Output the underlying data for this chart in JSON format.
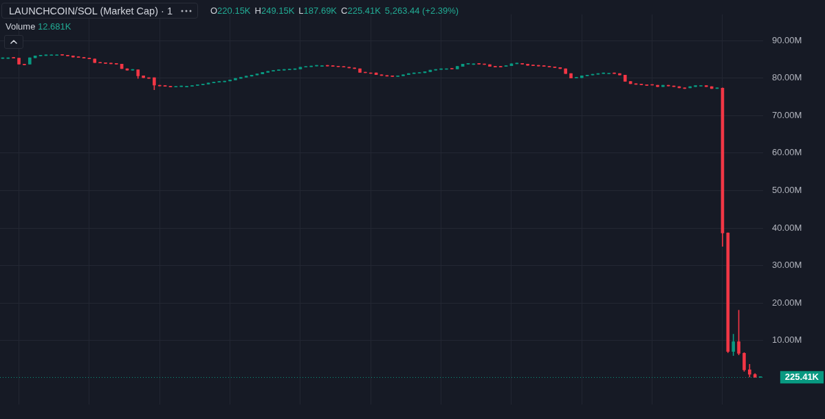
{
  "chart_data": {
    "type": "candlestick",
    "title": "LAUNCHCOIN/SOL (Market Cap) · 1",
    "annotations": [
      "O220.15K",
      "H249.15K",
      "L187.69K",
      "C225.41K",
      "5,263.44 (+2.39%)",
      "Volume 12.681K"
    ],
    "categories": [
      null,
      null,
      null,
      null,
      null,
      null,
      null,
      null,
      null,
      null,
      null,
      null,
      null,
      null,
      null,
      null,
      null,
      null,
      null,
      null,
      null,
      null,
      null,
      null,
      null,
      null,
      null,
      null,
      null,
      null,
      null,
      null,
      null,
      null,
      null,
      null,
      null,
      null,
      null,
      null,
      null,
      null,
      null,
      null,
      null,
      null,
      null,
      null,
      null,
      null,
      null,
      null,
      null,
      null,
      null,
      null,
      null,
      null,
      null,
      null,
      null,
      null,
      null,
      null,
      null,
      null,
      null,
      null,
      null,
      null,
      null,
      null,
      null,
      null,
      null,
      null,
      null,
      null,
      null,
      null,
      null,
      null,
      null,
      null,
      null,
      null,
      null,
      null,
      null,
      null,
      null,
      null,
      null,
      null,
      null,
      null,
      null,
      null,
      null,
      null,
      null,
      null,
      null,
      null,
      null,
      null,
      null,
      null,
      null,
      null,
      null,
      null,
      null,
      null,
      null,
      null,
      null,
      null,
      null,
      null,
      null,
      null,
      null,
      null,
      null,
      null,
      null,
      null,
      null,
      null,
      null,
      null,
      null,
      null,
      null,
      null,
      null,
      null,
      null,
      null,
      null
    ],
    "ohlc": [
      [
        85.4,
        85.4,
        85.4,
        85.4
      ],
      [
        85.4,
        85.4,
        85.4,
        85.4
      ],
      [
        85.4,
        85.4,
        85.3,
        85.3
      ],
      [
        85.3,
        85.3,
        83.7,
        83.7
      ],
      [
        83.7,
        83.7,
        83.7,
        83.7
      ],
      [
        83.7,
        85.4,
        83.7,
        85.4
      ],
      [
        85.4,
        85.9,
        85.4,
        85.9
      ],
      [
        85.9,
        86.0,
        85.9,
        86.0
      ],
      [
        86.0,
        86.2,
        86.0,
        86.2
      ],
      [
        86.2,
        86.2,
        86.2,
        86.2
      ],
      [
        86.2,
        86.2,
        86.2,
        86.2
      ],
      [
        86.2,
        86.2,
        86.1,
        86.1
      ],
      [
        86.1,
        86.1,
        85.9,
        85.9
      ],
      [
        85.9,
        85.9,
        85.6,
        85.6
      ],
      [
        85.6,
        85.6,
        85.5,
        85.5
      ],
      [
        85.5,
        85.5,
        85.3,
        85.3
      ],
      [
        85.3,
        85.3,
        85.1,
        85.1
      ],
      [
        85.1,
        85.1,
        84.1,
        84.1
      ],
      [
        84.1,
        84.1,
        84.0,
        84.0
      ],
      [
        84.0,
        84.0,
        83.9,
        83.9
      ],
      [
        83.9,
        83.9,
        83.8,
        83.8
      ],
      [
        83.8,
        83.8,
        83.7,
        83.7
      ],
      [
        83.7,
        83.7,
        82.5,
        82.5
      ],
      [
        82.5,
        82.5,
        82.1,
        82.1
      ],
      [
        82.1,
        82.2,
        82.1,
        82.2
      ],
      [
        82.2,
        82.2,
        79.9,
        80.6
      ],
      [
        80.6,
        80.6,
        80.1,
        80.1
      ],
      [
        80.1,
        80.1,
        80.1,
        80.1
      ],
      [
        80.1,
        80.1,
        76.9,
        78.1
      ],
      [
        78.1,
        78.1,
        77.9,
        77.9
      ],
      [
        77.9,
        77.9,
        77.8,
        77.8
      ],
      [
        77.8,
        77.8,
        77.6,
        77.6
      ],
      [
        77.6,
        77.7,
        77.6,
        77.7
      ],
      [
        77.7,
        77.8,
        77.7,
        77.8
      ],
      [
        77.8,
        77.8,
        77.8,
        77.8
      ],
      [
        77.8,
        78.0,
        77.8,
        78.0
      ],
      [
        78.0,
        78.2,
        78.0,
        78.2
      ],
      [
        78.2,
        78.4,
        78.2,
        78.4
      ],
      [
        78.4,
        78.7,
        78.4,
        78.7
      ],
      [
        78.7,
        78.9,
        78.7,
        78.9
      ],
      [
        78.9,
        79.0,
        78.9,
        79.0
      ],
      [
        79.0,
        79.2,
        79.0,
        79.2
      ],
      [
        79.2,
        79.5,
        79.2,
        79.5
      ],
      [
        79.5,
        79.9,
        79.5,
        79.9
      ],
      [
        79.9,
        80.2,
        79.9,
        80.2
      ],
      [
        80.2,
        80.5,
        80.2,
        80.5
      ],
      [
        80.5,
        80.8,
        80.5,
        80.8
      ],
      [
        80.8,
        81.1,
        80.8,
        81.1
      ],
      [
        81.1,
        81.5,
        81.1,
        81.5
      ],
      [
        81.5,
        81.8,
        81.5,
        81.8
      ],
      [
        81.8,
        82.0,
        81.8,
        82.0
      ],
      [
        82.0,
        82.1,
        82.0,
        82.1
      ],
      [
        82.1,
        82.2,
        82.1,
        82.2
      ],
      [
        82.2,
        82.3,
        82.2,
        82.3
      ],
      [
        82.3,
        82.4,
        82.3,
        82.4
      ],
      [
        82.4,
        82.9,
        82.4,
        82.9
      ],
      [
        82.9,
        83.0,
        82.9,
        83.0
      ],
      [
        83.0,
        83.2,
        83.0,
        83.2
      ],
      [
        83.2,
        83.3,
        83.2,
        83.3
      ],
      [
        83.3,
        83.3,
        83.3,
        83.3
      ],
      [
        83.3,
        83.3,
        83.2,
        83.2
      ],
      [
        83.2,
        83.2,
        83.1,
        83.1
      ],
      [
        83.1,
        83.1,
        83.0,
        83.0
      ],
      [
        83.0,
        83.0,
        82.9,
        82.9
      ],
      [
        82.9,
        82.9,
        82.7,
        82.7
      ],
      [
        82.7,
        82.7,
        82.5,
        82.5
      ],
      [
        82.5,
        82.5,
        81.5,
        81.5
      ],
      [
        81.5,
        81.5,
        81.4,
        81.4
      ],
      [
        81.4,
        81.4,
        81.4,
        81.4
      ],
      [
        81.4,
        81.4,
        80.9,
        80.9
      ],
      [
        80.9,
        80.9,
        80.7,
        80.7
      ],
      [
        80.7,
        80.7,
        80.5,
        80.5
      ],
      [
        80.5,
        80.5,
        80.4,
        80.4
      ],
      [
        80.4,
        80.6,
        80.4,
        80.6
      ],
      [
        80.6,
        80.9,
        80.6,
        80.9
      ],
      [
        80.9,
        81.2,
        80.9,
        81.2
      ],
      [
        81.2,
        81.3,
        81.2,
        81.3
      ],
      [
        81.3,
        81.4,
        81.3,
        81.4
      ],
      [
        81.4,
        81.7,
        81.4,
        81.7
      ],
      [
        81.7,
        82.1,
        81.7,
        82.1
      ],
      [
        82.1,
        82.3,
        82.1,
        82.3
      ],
      [
        82.3,
        82.5,
        82.3,
        82.5
      ],
      [
        82.5,
        82.5,
        82.5,
        82.5
      ],
      [
        82.5,
        82.5,
        82.4,
        82.4
      ],
      [
        82.4,
        83.1,
        82.4,
        83.1
      ],
      [
        83.1,
        83.7,
        83.1,
        83.7
      ],
      [
        83.7,
        83.8,
        83.7,
        83.8
      ],
      [
        83.8,
        83.8,
        83.8,
        83.8
      ],
      [
        83.8,
        83.8,
        83.7,
        83.7
      ],
      [
        83.7,
        83.7,
        83.6,
        83.6
      ],
      [
        83.6,
        83.6,
        83.1,
        83.1
      ],
      [
        83.1,
        83.1,
        83.1,
        83.1
      ],
      [
        83.1,
        83.1,
        83.1,
        83.1
      ],
      [
        83.1,
        83.3,
        83.1,
        83.3
      ],
      [
        83.3,
        83.8,
        83.3,
        83.8
      ],
      [
        83.8,
        83.9,
        83.8,
        83.9
      ],
      [
        83.9,
        83.9,
        83.7,
        83.7
      ],
      [
        83.7,
        83.7,
        83.4,
        83.4
      ],
      [
        83.4,
        83.4,
        83.3,
        83.3
      ],
      [
        83.3,
        83.3,
        83.2,
        83.2
      ],
      [
        83.2,
        83.2,
        83.1,
        83.1
      ],
      [
        83.1,
        83.1,
        82.9,
        82.9
      ],
      [
        82.9,
        82.9,
        82.8,
        82.8
      ],
      [
        82.8,
        82.8,
        82.5,
        82.5
      ],
      [
        82.5,
        82.5,
        81.2,
        81.2
      ],
      [
        81.2,
        81.2,
        80.0,
        80.0
      ],
      [
        80.0,
        80.1,
        80.0,
        80.1
      ],
      [
        80.1,
        80.6,
        80.1,
        80.6
      ],
      [
        80.6,
        80.8,
        80.6,
        80.8
      ],
      [
        80.8,
        81.0,
        80.8,
        81.0
      ],
      [
        81.0,
        81.2,
        81.0,
        81.2
      ],
      [
        81.2,
        81.3,
        81.2,
        81.3
      ],
      [
        81.3,
        81.3,
        81.3,
        81.3
      ],
      [
        81.3,
        81.3,
        81.2,
        81.2
      ],
      [
        81.2,
        81.2,
        80.8,
        80.8
      ],
      [
        80.8,
        80.8,
        79.1,
        79.1
      ],
      [
        79.1,
        79.1,
        78.5,
        78.5
      ],
      [
        78.5,
        78.5,
        78.3,
        78.3
      ],
      [
        78.3,
        78.3,
        78.2,
        78.2
      ],
      [
        78.2,
        78.2,
        78.2,
        78.2
      ],
      [
        78.2,
        78.2,
        78.1,
        78.1
      ],
      [
        78.1,
        78.1,
        77.7,
        77.7
      ],
      [
        77.7,
        78.1,
        77.7,
        78.1
      ],
      [
        78.1,
        78.1,
        77.9,
        77.9
      ],
      [
        77.9,
        77.9,
        77.7,
        77.7
      ],
      [
        77.7,
        77.7,
        77.4,
        77.4
      ],
      [
        77.4,
        77.4,
        77.4,
        77.4
      ],
      [
        77.4,
        77.7,
        77.4,
        77.7
      ],
      [
        77.7,
        78.0,
        77.7,
        78.0
      ],
      [
        78.0,
        78.0,
        78.0,
        78.0
      ],
      [
        78.0,
        78.0,
        77.7,
        77.7
      ],
      [
        77.7,
        77.7,
        77.2,
        77.2
      ],
      [
        77.2,
        77.3,
        77.2,
        77.3
      ],
      [
        77.3,
        77.4,
        35.1,
        38.7
      ],
      [
        38.7,
        38.7,
        6.8,
        7.1
      ],
      [
        7.1,
        11.7,
        6.0,
        9.7
      ],
      [
        9.7,
        18.1,
        6.2,
        6.6
      ],
      [
        6.6,
        6.8,
        1.8,
        2.2
      ],
      [
        2.2,
        3.7,
        0.3,
        1.0
      ],
      [
        1.0,
        1.2,
        0.19,
        0.22
      ],
      [
        0.22015,
        0.24915,
        0.18769,
        0.22541
      ]
    ],
    "colors": [
      "#089981",
      "#089981",
      "#f23645",
      "#f23645",
      "#f23645",
      "#089981",
      "#089981",
      "#089981",
      "#089981",
      "#089981",
      "#089981",
      "#f23645",
      "#f23645",
      "#f23645",
      "#f23645",
      "#f23645",
      "#f23645",
      "#f23645",
      "#f23645",
      "#f23645",
      "#f23645",
      "#f23645",
      "#f23645",
      "#f23645",
      "#089981",
      "#f23645",
      "#f23645",
      "#f23645",
      "#f23645",
      "#f23645",
      "#f23645",
      "#f23645",
      "#089981",
      "#089981",
      "#089981",
      "#089981",
      "#089981",
      "#089981",
      "#089981",
      "#089981",
      "#089981",
      "#089981",
      "#089981",
      "#089981",
      "#089981",
      "#089981",
      "#089981",
      "#089981",
      "#089981",
      "#089981",
      "#089981",
      "#089981",
      "#089981",
      "#089981",
      "#089981",
      "#089981",
      "#089981",
      "#089981",
      "#089981",
      "#089981",
      "#f23645",
      "#f23645",
      "#f23645",
      "#f23645",
      "#f23645",
      "#f23645",
      "#f23645",
      "#f23645",
      "#f23645",
      "#f23645",
      "#f23645",
      "#f23645",
      "#f23645",
      "#089981",
      "#089981",
      "#089981",
      "#089981",
      "#089981",
      "#089981",
      "#089981",
      "#089981",
      "#089981",
      "#089981",
      "#f23645",
      "#089981",
      "#089981",
      "#089981",
      "#089981",
      "#f23645",
      "#f23645",
      "#f23645",
      "#f23645",
      "#f23645",
      "#089981",
      "#089981",
      "#089981",
      "#f23645",
      "#f23645",
      "#f23645",
      "#f23645",
      "#f23645",
      "#f23645",
      "#f23645",
      "#f23645",
      "#f23645",
      "#f23645",
      "#089981",
      "#089981",
      "#089981",
      "#089981",
      "#089981",
      "#089981",
      "#089981",
      "#f23645",
      "#f23645",
      "#f23645",
      "#f23645",
      "#f23645",
      "#f23645",
      "#f23645",
      "#f23645",
      "#f23645",
      "#089981",
      "#f23645",
      "#f23645",
      "#f23645",
      "#f23645",
      "#089981",
      "#089981",
      "#089981",
      "#f23645",
      "#f23645",
      "#089981",
      "#f23645",
      "#f23645",
      "#089981",
      "#f23645",
      "#f23645",
      "#f23645",
      "#f23645",
      "#089981"
    ],
    "ylim": [
      -7.1,
      97.0
    ],
    "yticks": [
      {
        "value": 10,
        "label": "10.00M"
      },
      {
        "value": 20,
        "label": "20.00M"
      },
      {
        "value": 30,
        "label": "30.00M"
      },
      {
        "value": 40,
        "label": "40.00M"
      },
      {
        "value": 50,
        "label": "50.00M"
      },
      {
        "value": 60,
        "label": "60.00M"
      },
      {
        "value": 70,
        "label": "70.00M"
      },
      {
        "value": 80,
        "label": "80.00M"
      },
      {
        "value": 90,
        "label": "90.00M"
      }
    ],
    "ref_lines": [
      {
        "axis": "y",
        "value": 0.22541,
        "label": "225.41K",
        "color": "#089981",
        "line_style": "dotted"
      }
    ],
    "grid": true,
    "legend": false,
    "tick_labels": "y"
  }
}
